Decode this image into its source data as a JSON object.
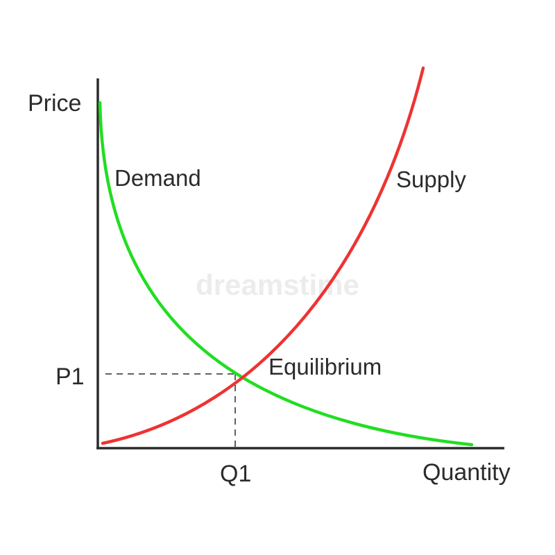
{
  "labels": {
    "y_axis": "Price",
    "x_axis": "Quantity",
    "demand": "Demand",
    "supply": "Supply",
    "equilibrium": "Equilibrium",
    "price_marker": "P1",
    "quantity_marker": "Q1"
  },
  "watermark": "dreamstime",
  "colors": {
    "demand": "#22dd22",
    "supply": "#ee3333",
    "axes": "#2b2b2b",
    "guides": "#2b2b2b",
    "text": "#2b2b2b"
  }
}
